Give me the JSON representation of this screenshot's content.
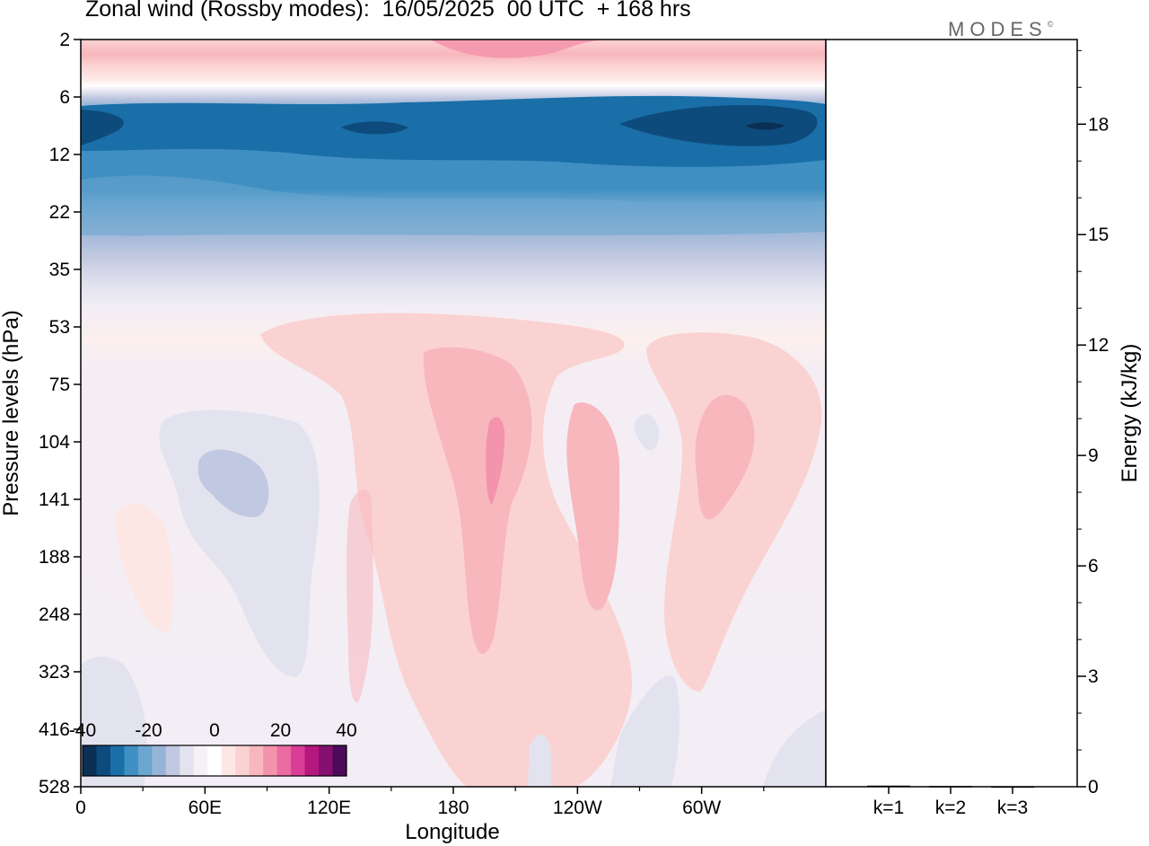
{
  "chart_data": [
    {
      "type": "heatmap",
      "title": "Zonal wind (Rossby modes):  16/05/2025  00 UTC  + 168 hrs",
      "xlabel": "Longitude",
      "ylabel": "Pressure levels (hPa)",
      "x_ticks": [
        "0",
        "60E",
        "120E",
        "180",
        "120W",
        "60W"
      ],
      "y_ticks": [
        "2",
        "6",
        "12",
        "22",
        "35",
        "53",
        "75",
        "104",
        "141",
        "188",
        "248",
        "323",
        "416",
        "528"
      ],
      "colorbar": {
        "tick_labels": [
          "-40",
          "-20",
          "0",
          "20",
          "40"
        ],
        "range": [
          -40,
          40
        ],
        "colors": [
          "#0c2f55",
          "#0e4b7d",
          "#1a6fa8",
          "#3f8fc2",
          "#6aa6cf",
          "#97b4d6",
          "#c1c8e1",
          "#e3e3ef",
          "#f7f1f6",
          "#ffffff",
          "#fde7e5",
          "#fbd2d2",
          "#f8b6bd",
          "#f393ac",
          "#ec6ba2",
          "#d93d95",
          "#b5167f",
          "#861070",
          "#4d0a5a"
        ]
      },
      "fields": [
        {
          "label": "stratospheric easterly jet (~10 hPa)",
          "value_range": [
            -40,
            -15
          ]
        },
        {
          "label": "upper-level westerlies (~2 hPa)",
          "value_range": [
            5,
            15
          ]
        },
        {
          "label": "tropospheric westerly maxima near 180 and 60W (~100-140 hPa)",
          "value_range": [
            5,
            20
          ]
        },
        {
          "label": "weak easterlies near 60E (~120 hPa)",
          "value_range": [
            -5,
            0
          ]
        }
      ]
    },
    {
      "type": "bar",
      "categories": [
        "k=1",
        "k=2",
        "k=3"
      ],
      "values": [
        0.03,
        0.02,
        0.01
      ],
      "ylabel": "Energy (kJ/kg)",
      "y_ticks": [
        "0",
        "3",
        "6",
        "9",
        "12",
        "15",
        "18"
      ],
      "ylim": [
        0,
        20.3
      ]
    }
  ],
  "brand": "MODES",
  "brand_mark": "©"
}
